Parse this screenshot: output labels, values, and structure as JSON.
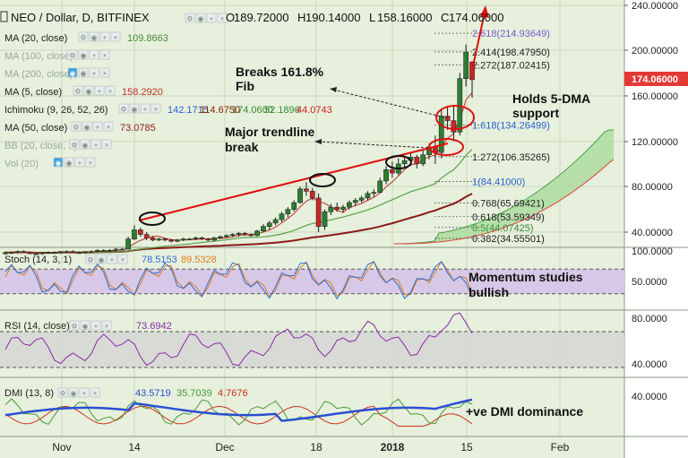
{
  "header": {
    "symbol": "NEO / Dollar, D, BITFINEX",
    "ohlc": [
      {
        "key": "O",
        "value": "189.72000"
      },
      {
        "key": "H",
        "value": "190.14000"
      },
      {
        "key": "L",
        "value": "158.16000"
      },
      {
        "key": "C",
        "value": "174.06000"
      }
    ]
  },
  "indicators": [
    {
      "label": "MA (20, close)",
      "values": [
        {
          "v": "109.8663",
          "color": "#4a8a3a"
        }
      ],
      "dimmed": false,
      "icons": "gear"
    },
    {
      "label": "MA (100, close)",
      "values": [],
      "dimmed": true,
      "icons": "gear"
    },
    {
      "label": "MA (200, close)",
      "values": [],
      "dimmed": true,
      "icons": "eye"
    },
    {
      "label": "MA (5, close)",
      "values": [
        {
          "v": "158.2920",
          "color": "#c0302a"
        }
      ],
      "dimmed": false,
      "icons": "gear"
    },
    {
      "label": "Ichimoku (9, 26, 52, 26)",
      "values": [
        {
          "v": "142.1715",
          "color": "#2a5fd0"
        },
        {
          "v": "114.6750",
          "color": "#8b2500"
        },
        {
          "v": "174.0600",
          "color": "#3a8a3a"
        },
        {
          "v": "52.1896",
          "color": "#3a8a3a"
        },
        {
          "v": "44.0743",
          "color": "#d02020"
        }
      ],
      "dimmed": false,
      "icons": "gear"
    },
    {
      "label": "MA (50, close)",
      "values": [
        {
          "v": "73.0785",
          "color": "#8b1a1a"
        }
      ],
      "dimmed": false,
      "icons": "gear"
    },
    {
      "label": "BB (20, close, 2)",
      "values": [],
      "dimmed": true,
      "icons": "gear"
    },
    {
      "label": "Vol (20)",
      "values": [],
      "dimmed": true,
      "icons": "eye"
    }
  ],
  "price_axis": {
    "ticks": [
      "240.00000",
      "200.00000",
      "160.00000",
      "120.00000",
      "80.00000",
      "40.00000"
    ],
    "current_price": "174.06000",
    "current_color": "#e53935"
  },
  "fib_levels": [
    {
      "label": "2.618(214.93649)",
      "value": 214.93649,
      "color": "#7a5ad0"
    },
    {
      "label": "2.414(198.47950)",
      "value": 198.4795,
      "color": "#222222"
    },
    {
      "label": "2.272(187.02415)",
      "value": 187.02415,
      "color": "#222222"
    },
    {
      "label": "1.618(134.26499)",
      "value": 134.26499,
      "color": "#2a5fd0"
    },
    {
      "label": "1.272(106.35265)",
      "value": 106.35265,
      "color": "#222222"
    },
    {
      "label": "1(84.41000)",
      "value": 84.41,
      "color": "#2a5fd0"
    },
    {
      "label": "0.768(65.69421)",
      "value": 65.69421,
      "color": "#222222"
    },
    {
      "label": "0.618(53.59349)",
      "value": 53.59349,
      "color": "#222222"
    },
    {
      "label": "0.5(44.07425)",
      "value": 44.07425,
      "color": "#3a8a3a"
    },
    {
      "label": "0.382(34.55501)",
      "value": 34.55501,
      "color": "#222222"
    }
  ],
  "annotations": {
    "breaks": "Breaks 161.8%\nFib",
    "holds": "Holds 5-DMA\nsupport",
    "trendline": "Major trendline\nbreak",
    "momentum": "Momentum studies\nbullish",
    "dmi": "+ve DMI dominance"
  },
  "stoch": {
    "label": "Stoch (14, 3, 1)",
    "k": "78.5153",
    "d": "89.5328",
    "k_color": "#2a6fd6",
    "d_color": "#e07b20",
    "axis": [
      "100.0000",
      "50.0000"
    ]
  },
  "rsi": {
    "label": "RSI (14, close)",
    "value": "73.6942",
    "color": "#8a2aa8",
    "axis": [
      "80.0000",
      "40.0000"
    ]
  },
  "dmi": {
    "label": "DMI (13, 8)",
    "values": [
      {
        "v": "43.5719",
        "color": "#2a4fd0"
      },
      {
        "v": "35.7039",
        "color": "#4a9a3a"
      },
      {
        "v": "4.7676",
        "color": "#d03020"
      }
    ],
    "axis": [
      "40.0000"
    ]
  },
  "time_axis": [
    "Nov",
    "14",
    "Dec",
    "18",
    "2018",
    "15",
    "Feb"
  ],
  "chart_data": {
    "type": "candlestick",
    "title": "NEO / Dollar, D, BITFINEX",
    "ylim": [
      0,
      240
    ],
    "y_scale": "linear",
    "grid": true,
    "candles": [
      [
        21,
        23,
        20,
        22
      ],
      [
        22,
        23,
        21,
        22
      ],
      [
        22,
        24,
        21,
        23
      ],
      [
        23,
        24,
        22,
        22
      ],
      [
        22,
        23,
        21,
        21
      ],
      [
        21,
        22,
        20,
        21
      ],
      [
        21,
        22,
        20,
        22
      ],
      [
        22,
        23,
        21,
        22
      ],
      [
        22,
        23,
        21,
        22
      ],
      [
        22,
        23,
        21,
        23
      ],
      [
        23,
        24,
        22,
        23
      ],
      [
        23,
        24,
        22,
        22
      ],
      [
        22,
        23,
        21,
        22
      ],
      [
        22,
        23,
        21,
        23
      ],
      [
        23,
        24,
        22,
        23
      ],
      [
        23,
        25,
        22,
        24
      ],
      [
        24,
        25,
        23,
        24
      ],
      [
        24,
        25,
        23,
        24
      ],
      [
        24,
        26,
        23,
        25
      ],
      [
        25,
        26,
        24,
        25
      ],
      [
        25,
        36,
        25,
        34
      ],
      [
        34,
        46,
        33,
        42
      ],
      [
        42,
        44,
        36,
        38
      ],
      [
        38,
        40,
        33,
        35
      ],
      [
        35,
        36,
        32,
        33
      ],
      [
        33,
        35,
        32,
        34
      ],
      [
        34,
        35,
        32,
        33
      ],
      [
        33,
        34,
        31,
        32
      ],
      [
        32,
        34,
        31,
        33
      ],
      [
        33,
        35,
        32,
        34
      ],
      [
        34,
        35,
        33,
        34
      ],
      [
        34,
        36,
        33,
        35
      ],
      [
        35,
        36,
        33,
        34
      ],
      [
        34,
        35,
        32,
        33
      ],
      [
        33,
        36,
        32,
        35
      ],
      [
        35,
        37,
        34,
        36
      ],
      [
        36,
        38,
        35,
        37
      ],
      [
        37,
        39,
        36,
        38
      ],
      [
        38,
        40,
        36,
        39
      ],
      [
        39,
        40,
        37,
        38
      ],
      [
        38,
        39,
        36,
        37
      ],
      [
        37,
        42,
        36,
        41
      ],
      [
        41,
        47,
        40,
        45
      ],
      [
        45,
        50,
        42,
        48
      ],
      [
        48,
        53,
        46,
        51
      ],
      [
        51,
        58,
        49,
        56
      ],
      [
        56,
        62,
        53,
        60
      ],
      [
        60,
        68,
        58,
        66
      ],
      [
        66,
        80,
        65,
        78
      ],
      [
        78,
        84,
        72,
        76
      ],
      [
        76,
        79,
        68,
        70
      ],
      [
        70,
        74,
        40,
        45
      ],
      [
        45,
        60,
        42,
        58
      ],
      [
        58,
        65,
        55,
        62
      ],
      [
        62,
        66,
        58,
        60
      ],
      [
        60,
        64,
        57,
        62
      ],
      [
        62,
        68,
        60,
        66
      ],
      [
        66,
        70,
        63,
        68
      ],
      [
        68,
        72,
        66,
        70
      ],
      [
        70,
        76,
        68,
        74
      ],
      [
        74,
        78,
        71,
        75
      ],
      [
        75,
        88,
        74,
        85
      ],
      [
        85,
        98,
        82,
        95
      ],
      [
        95,
        102,
        88,
        92
      ],
      [
        92,
        105,
        90,
        100
      ],
      [
        100,
        106,
        96,
        103
      ],
      [
        103,
        110,
        98,
        106
      ],
      [
        106,
        108,
        96,
        100
      ],
      [
        100,
        112,
        98,
        108
      ],
      [
        108,
        118,
        104,
        115
      ],
      [
        115,
        125,
        100,
        110
      ],
      [
        110,
        148,
        105,
        142
      ],
      [
        142,
        150,
        130,
        138
      ],
      [
        138,
        152,
        120,
        128
      ],
      [
        128,
        180,
        125,
        175
      ],
      [
        175,
        205,
        168,
        198
      ],
      [
        189.72,
        190.14,
        158.16,
        174.06
      ]
    ],
    "series": [
      {
        "name": "MA (20, close)",
        "color": "#5ba04a"
      },
      {
        "name": "MA (50, close)",
        "color": "#8b1a1a"
      },
      {
        "name": "MA (5, close)",
        "color": "#c0302a"
      }
    ]
  }
}
